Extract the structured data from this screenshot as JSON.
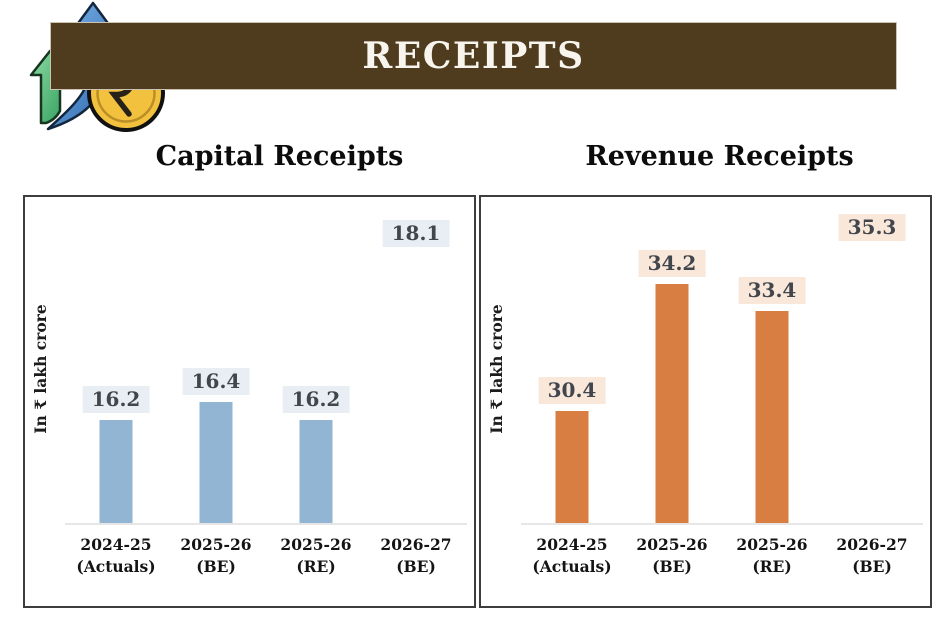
{
  "header": {
    "title": "RECEIPTS",
    "bar_color": "#4f3c1e",
    "icon": "growth-arrows-rupee-coin-icon"
  },
  "chart_data": [
    {
      "type": "bar",
      "title": "Capital Receipts",
      "ylabel": "In ₹ lakh crore",
      "xlabel": "",
      "categories": [
        "2024-25 (Actuals)",
        "2025-26 (BE)",
        "2025-26 (RE)",
        "2026-27 (BE)"
      ],
      "values": [
        16.2,
        16.4,
        16.2,
        18.1
      ],
      "value_labels": [
        "16.2",
        "16.4",
        "16.2",
        "18.1"
      ],
      "bar_fill_styles": [
        "solid",
        "solid",
        "solid",
        "dotted"
      ],
      "unit": "lakh crore rupees",
      "ylim": [
        15,
        18.6
      ],
      "grid": false,
      "legend": false,
      "bar_color": "#92b5d3",
      "dot_color": "#9dbdd8",
      "value_label_bg": "#e9eef4"
    },
    {
      "type": "bar",
      "title": "Revenue Receipts",
      "ylabel": "In ₹ lakh crore",
      "xlabel": "",
      "categories": [
        "2024-25 (Actuals)",
        "2025-26 (BE)",
        "2025-26 (RE)",
        "2026-27 (BE)"
      ],
      "values": [
        30.4,
        34.2,
        33.4,
        35.3
      ],
      "value_labels": [
        "30.4",
        "34.2",
        "33.4",
        "35.3"
      ],
      "bar_fill_styles": [
        "solid",
        "solid",
        "solid",
        "dotted"
      ],
      "unit": "lakh crore rupees",
      "ylim": [
        27,
        36.4
      ],
      "grid": false,
      "legend": false,
      "bar_color": "#d87e42",
      "dot_color": "#e29055",
      "value_label_bg": "#f9e7da"
    }
  ]
}
